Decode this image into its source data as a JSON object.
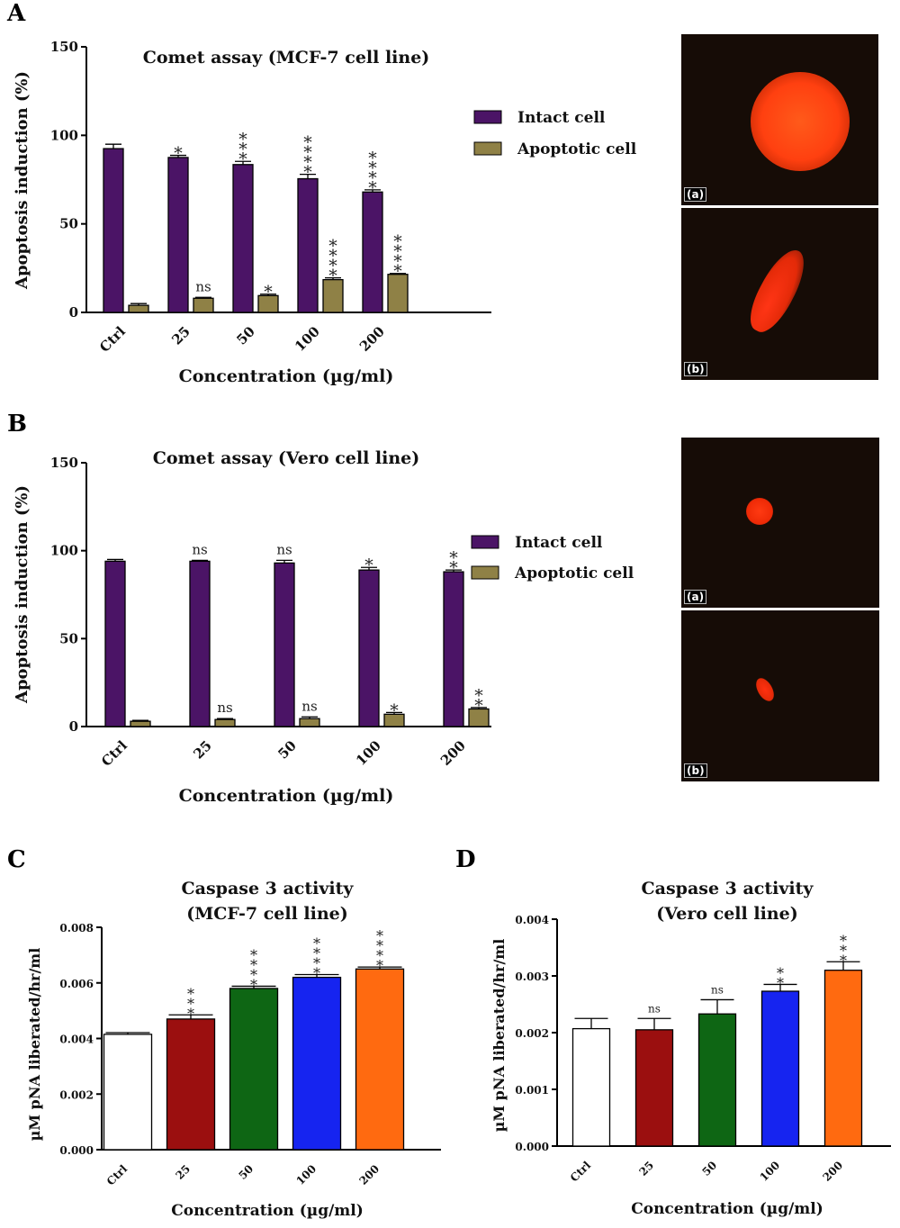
{
  "panel_letters": [
    "A",
    "B",
    "C",
    "D"
  ],
  "legend_items": [
    {
      "name": "Intact cell",
      "color": "#4b1466"
    },
    {
      "name": "Apoptotic cell",
      "color": "#8f8146"
    }
  ],
  "micrograph_labels": [
    "(a)",
    "(b)"
  ],
  "chart_data": [
    {
      "panel": "A",
      "type": "bar",
      "title": "Comet assay (MCF-7 cell line)",
      "xlabel": "Concentration (µg/ml)",
      "ylabel": "Apoptosis induction (%)",
      "ylim": [
        0,
        150
      ],
      "yticks": [
        "0",
        "50",
        "100",
        "150"
      ],
      "categories": [
        "Ctrl",
        "25",
        "50",
        "100",
        "200"
      ],
      "legend_position": "right",
      "series": [
        {
          "name": "Intact cell",
          "color": "#4b1466",
          "values": [
            92.5,
            87.5,
            83.5,
            75.5,
            68
          ],
          "errors": [
            2.5,
            1.2,
            1.8,
            2.5,
            1.2
          ],
          "significance": [
            "",
            "*",
            "***",
            "****",
            "****"
          ]
        },
        {
          "name": "Apoptotic cell",
          "color": "#8f8146",
          "values": [
            4,
            8,
            9.5,
            18.5,
            21.5
          ],
          "errors": [
            1,
            0.5,
            0.8,
            1,
            0.5
          ],
          "significance": [
            "",
            "ns",
            "*",
            "****",
            "****"
          ]
        }
      ]
    },
    {
      "panel": "B",
      "type": "bar",
      "title": "Comet assay (Vero cell line)",
      "xlabel": "Concentration (µg/ml)",
      "ylabel": "Apoptosis induction (%)",
      "ylim": [
        0,
        150
      ],
      "yticks": [
        "0",
        "50",
        "100",
        "150"
      ],
      "categories": [
        "Ctrl",
        "25",
        "50",
        "100",
        "200"
      ],
      "legend_position": "right",
      "series": [
        {
          "name": "Intact cell",
          "color": "#4b1466",
          "values": [
            94,
            94,
            93,
            89,
            88
          ],
          "errors": [
            1,
            0.5,
            1.5,
            1.5,
            1
          ],
          "significance": [
            "",
            "ns",
            "ns",
            "*",
            "**"
          ]
        },
        {
          "name": "Apoptotic cell",
          "color": "#8f8146",
          "values": [
            3,
            4,
            4.5,
            7,
            10
          ],
          "errors": [
            0.5,
            0.5,
            1,
            1,
            0.8
          ],
          "significance": [
            "",
            "ns",
            "ns",
            "*",
            "**"
          ]
        }
      ]
    },
    {
      "panel": "C",
      "type": "bar",
      "title": [
        "Caspase 3 activity",
        "(MCF-7 cell line)"
      ],
      "xlabel": "Concentration (µg/ml)",
      "ylabel": "µM pNA liberated/hr/ml",
      "ylim": [
        0,
        0.008
      ],
      "yticks": [
        "0.000",
        "0.002",
        "0.004",
        "0.006",
        "0.008"
      ],
      "categories": [
        "Ctrl",
        "25",
        "50",
        "100",
        "200"
      ],
      "colors": [
        "#ffffff",
        "#9b0f0f",
        "#0e6614",
        "#1624f0",
        "#ff6a10"
      ],
      "values": [
        0.00415,
        0.0047,
        0.0058,
        0.0062,
        0.0065
      ],
      "errors": [
        6e-05,
        0.00015,
        8e-05,
        0.0001,
        7e-05
      ],
      "significance": [
        "",
        "***",
        "****",
        "****",
        "****"
      ]
    },
    {
      "panel": "D",
      "type": "bar",
      "title": [
        "Caspase 3 activity",
        "(Vero cell line)"
      ],
      "xlabel": "Concentration (µg/ml)",
      "ylabel": "µM pNA liberated/hr/ml",
      "ylim": [
        0,
        0.004
      ],
      "yticks": [
        "0.000",
        "0.001",
        "0.002",
        "0.003",
        "0.004"
      ],
      "categories": [
        "Ctrl",
        "25",
        "50",
        "100",
        "200"
      ],
      "colors": [
        "#ffffff",
        "#9b0f0f",
        "#0e6614",
        "#1624f0",
        "#ff6a10"
      ],
      "values": [
        0.00207,
        0.00205,
        0.00233,
        0.00273,
        0.0031
      ],
      "errors": [
        0.00018,
        0.0002,
        0.00025,
        0.00012,
        0.00015
      ],
      "significance": [
        "",
        "ns",
        "ns",
        "**",
        "***"
      ]
    }
  ]
}
